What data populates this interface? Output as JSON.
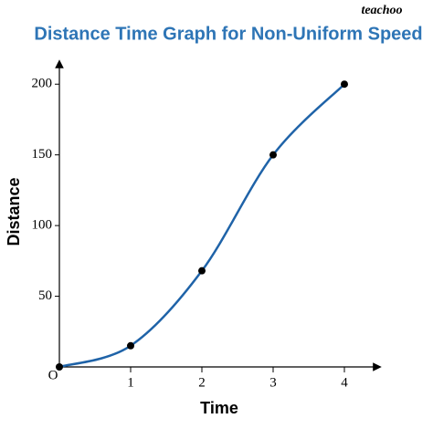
{
  "chart_data": {
    "type": "line",
    "title": "Distance Time Graph for Non-Uniform Speed",
    "x_label": "Time",
    "y_label": "Distance",
    "origin_label": "O",
    "watermark": "teachoo",
    "x": [
      0,
      1,
      2,
      3,
      4
    ],
    "values": [
      0,
      15,
      68,
      150,
      200
    ],
    "color": "#1f63a8",
    "xlim": [
      0,
      4.5
    ],
    "ylim": [
      0,
      215
    ],
    "xticks": [
      1,
      2,
      3,
      4
    ],
    "yticks": [
      50,
      100,
      150,
      200
    ],
    "smooth": true,
    "markers": true
  }
}
